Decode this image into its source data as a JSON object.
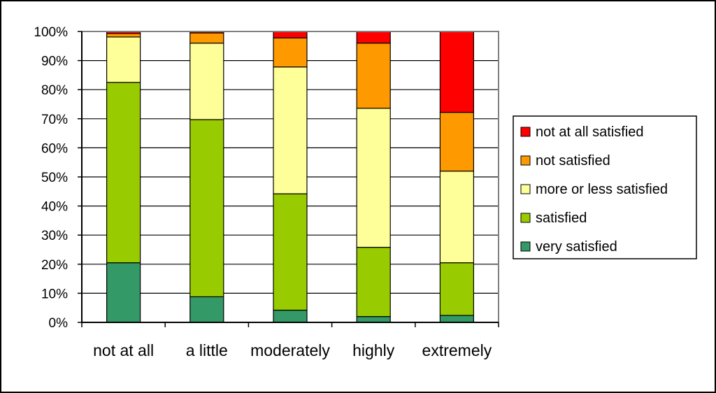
{
  "chart_data": {
    "type": "bar",
    "stacked": true,
    "percent": true,
    "categories": [
      "not at all",
      "a little",
      "moderately",
      "highly",
      "extremely"
    ],
    "series": [
      {
        "name": "very satisfied",
        "color": "#339966",
        "values": [
          20.5,
          8.8,
          4.2,
          2.0,
          2.4
        ]
      },
      {
        "name": "satisfied",
        "color": "#99CC00",
        "values": [
          62.0,
          60.9,
          40.0,
          23.8,
          18.1
        ]
      },
      {
        "name": "more or less satisfied",
        "color": "#FFFF99",
        "values": [
          15.6,
          26.3,
          43.6,
          47.8,
          31.5
        ]
      },
      {
        "name": "not satisfied",
        "color": "#FF9900",
        "values": [
          1.2,
          3.5,
          10.0,
          22.4,
          20.2
        ]
      },
      {
        "name": "not at all satisfied",
        "color": "#FF0000",
        "values": [
          0.7,
          0.5,
          2.2,
          4.0,
          27.8
        ]
      }
    ],
    "ylim": [
      0,
      100
    ],
    "yticks": [
      "0%",
      "10%",
      "20%",
      "30%",
      "40%",
      "50%",
      "60%",
      "70%",
      "80%",
      "90%",
      "100%"
    ],
    "grid": true,
    "legend_position": "right",
    "legend_order": [
      "not at all satisfied",
      "not satisfied",
      "more or less satisfied",
      "satisfied",
      "very satisfied"
    ],
    "title": "",
    "xlabel": "",
    "ylabel": ""
  }
}
